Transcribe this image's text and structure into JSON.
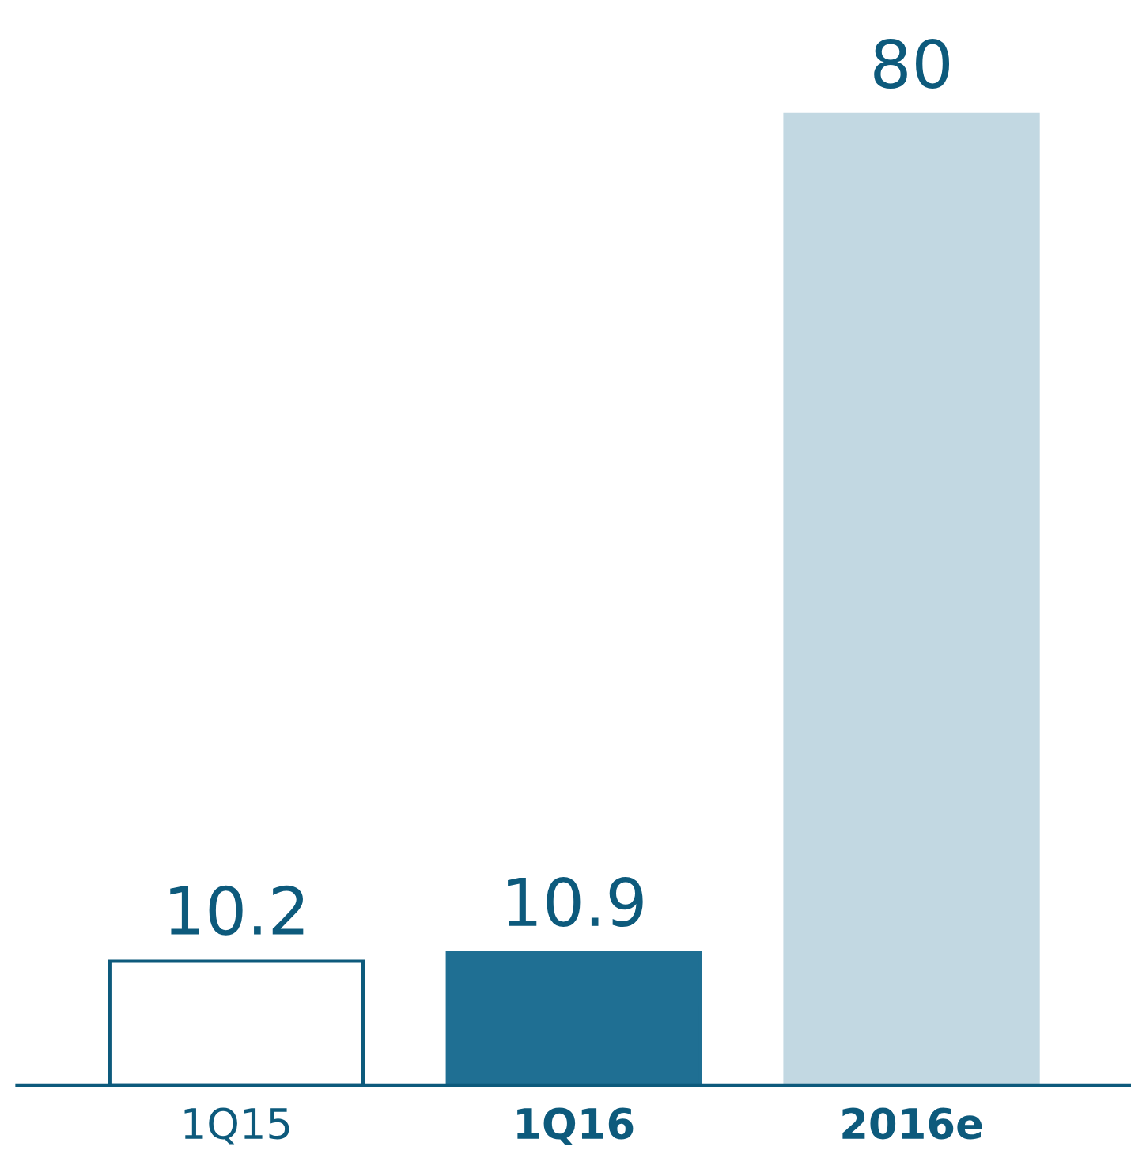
{
  "chart_data": {
    "type": "bar",
    "categories": [
      "1Q15",
      "1Q16",
      "2016e"
    ],
    "values": [
      10.2,
      10.9,
      80
    ],
    "colors": [
      "#ffffff",
      "#1f6f93",
      "#c2d8e2"
    ],
    "data_labels": true,
    "grid": false,
    "legend": false
  }
}
